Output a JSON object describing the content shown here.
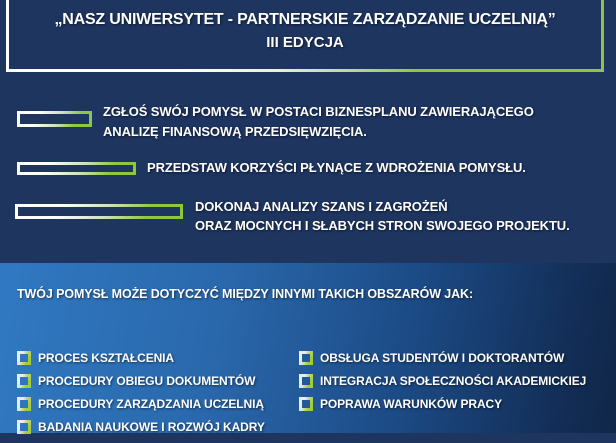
{
  "colors": {
    "navy_background": "#1e3560",
    "accent_green": "#8dc63f",
    "text_white": "#ffffff",
    "bottom_gradient_left": "#3079c2",
    "bottom_gradient_right": "#102748"
  },
  "header": {
    "title_line1": "„NASZ UNIWERSYTET - PARTNERSKIE ZARZĄDZANIE UCZELNIĄ”",
    "title_line2": "III EDYCJA"
  },
  "instructions": [
    {
      "lines": [
        "ZGŁOŚ SWÓJ POMYSŁ W POSTACI BIZNESPLANU ZAWIERAJĄCEGO",
        "ANALIZĘ FINANSOWĄ PRZEDSIĘWZIĘCIA."
      ]
    },
    {
      "lines": [
        "PRZEDSTAW KORZYŚCI PŁYNĄCE Z WDROŻENIA POMYSŁU."
      ]
    },
    {
      "lines": [
        "DOKONAJ ANALIZY SZANS I ZAGROŻEŃ",
        "ORAZ MOCNYCH I SŁABYCH STRON SWOJEGO PROJEKTU."
      ]
    }
  ],
  "areas": {
    "heading": "TWÓJ POMYSŁ MOŻE DOTYCZYĆ MIĘDZY INNYMI TAKICH OBSZARÓW JAK:",
    "left_column": [
      "PROCES KSZTAŁCENIA",
      "PROCEDURY OBIEGU DOKUMENTÓW",
      "PROCEDURY ZARZĄDZANIA UCZELNIĄ",
      "BADANIA NAUKOWE I ROZWÓJ KADRY"
    ],
    "right_column": [
      "OBSŁUGA STUDENTÓW I DOKTORANTÓW",
      "INTEGRACJA SPOŁECZNOŚCI AKADEMICKIEJ",
      "POPRAWA WARUNKÓW PRACY"
    ]
  }
}
